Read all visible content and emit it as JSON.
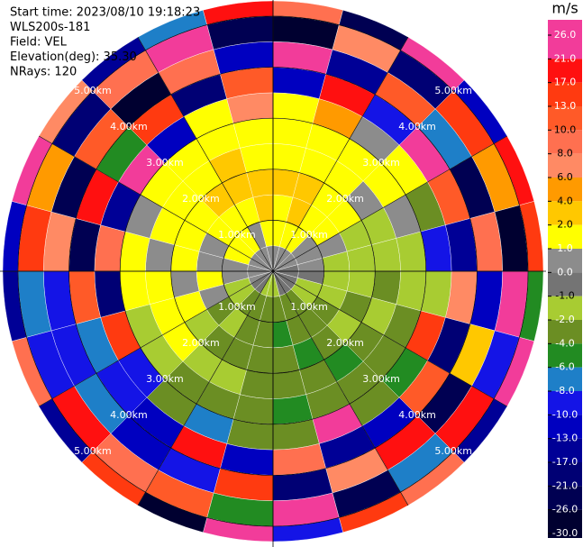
{
  "chart_data": {
    "type": "ppi",
    "info": [
      "Start time: 2023/08/10 19:18:23",
      "WLS200s-181",
      "Field: VEL",
      "Elevation(deg): 35.30",
      "NRays: 120"
    ],
    "rlim": [
      0,
      5.3
    ],
    "range_rings": [
      {
        "value": 1,
        "label": "1.00km"
      },
      {
        "value": 2,
        "label": "2.00km"
      },
      {
        "value": 3,
        "label": "3.00km"
      },
      {
        "value": 4,
        "label": "4.00km"
      },
      {
        "value": 5,
        "label": "5.00km"
      }
    ],
    "azimuths": [
      0,
      15,
      30,
      45,
      60,
      75,
      90,
      105,
      120,
      135,
      150,
      165,
      180,
      195,
      210,
      225,
      240,
      255,
      270,
      285,
      300,
      315,
      330,
      345
    ],
    "range_edges": [
      0,
      0.5,
      1,
      1.5,
      2,
      2.5,
      3,
      3.5,
      4,
      4.5,
      5,
      5.3
    ],
    "values": [
      [
        0.5,
        1.5,
        1.5,
        3,
        1.5,
        1.5,
        1.5,
        -12,
        22,
        -27,
        9
      ],
      [
        0.5,
        1.5,
        3,
        3,
        1.5,
        1.5,
        5,
        18,
        -14,
        7,
        -24
      ],
      [
        0.5,
        1.5,
        1.5,
        1.5,
        1.5,
        1.5,
        0.5,
        -9,
        12,
        -18,
        27
      ],
      [
        0.5,
        0.5,
        1.5,
        1.5,
        0.5,
        1.5,
        1.5,
        24,
        -7,
        15,
        -11
      ],
      [
        0.5,
        0.5,
        0.5,
        -1.5,
        -1.5,
        0.5,
        -3,
        11,
        -22,
        5,
        19
      ],
      [
        -0.5,
        0.5,
        -1.5,
        -1.5,
        -1.5,
        -1.5,
        -9,
        -16,
        9,
        -28,
        14
      ],
      [
        -0.5,
        -0.5,
        -1.5,
        -1.5,
        -3,
        -1.5,
        -1.5,
        7,
        -12,
        23,
        -5
      ],
      [
        -0.5,
        -1.5,
        -1.5,
        -3,
        -1.5,
        -3,
        16,
        -20,
        3,
        -9,
        25
      ],
      [
        -0.5,
        -1.5,
        -3,
        -1.5,
        -3,
        -3,
        -5,
        12,
        -26,
        18,
        -14
      ],
      [
        -0.5,
        -3,
        -3,
        -3,
        -5,
        -3,
        -3,
        -11,
        20,
        -7,
        9
      ],
      [
        -0.5,
        -3,
        -3,
        -5,
        -3,
        -3,
        22,
        -15,
        6,
        -23,
        14
      ],
      [
        -1.5,
        -3,
        -5,
        -3,
        -3,
        -5,
        -3,
        8,
        -18,
        27,
        -9
      ],
      [
        -1.5,
        -3,
        -3,
        -3,
        -3,
        -3,
        -3,
        -12,
        15,
        -5,
        21
      ],
      [
        -1.5,
        -3,
        -3,
        -3,
        -1.5,
        -3,
        -7,
        18,
        -9,
        12,
        -27
      ],
      [
        -0.5,
        -3,
        -1.5,
        -3,
        -1.5,
        -3,
        -3,
        -11,
        -12,
        9,
        16
      ],
      [
        -0.5,
        -1.5,
        -3,
        -1.5,
        1.5,
        -1.5,
        -9,
        -9,
        -7,
        19,
        -15
      ],
      [
        0.5,
        -1.5,
        0.5,
        1.5,
        1.5,
        -1.5,
        14,
        -7,
        -9,
        -9,
        8
      ],
      [
        0.5,
        0.5,
        1.5,
        0.5,
        1.5,
        1.5,
        -20,
        11,
        -9,
        -7,
        -16
      ],
      [
        0.5,
        0.5,
        0.5,
        1.5,
        0.5,
        1.5,
        9,
        -25,
        6,
        14,
        -11
      ],
      [
        0.5,
        1.5,
        0.5,
        1.5,
        1.5,
        0.5,
        -14,
        17,
        -22,
        5,
        26
      ],
      [
        0.5,
        1.5,
        1.5,
        1.5,
        1.5,
        1.5,
        23,
        -6,
        11,
        -19,
        7
      ],
      [
        0.5,
        1.5,
        1.5,
        3,
        1.5,
        1.5,
        -11,
        14,
        -27,
        9,
        -16
      ],
      [
        0.5,
        0.5,
        1.5,
        3,
        3,
        1.5,
        1.5,
        -18,
        8,
        21,
        -8
      ],
      [
        0.5,
        1.5,
        3,
        3,
        1.5,
        1.5,
        6,
        10,
        -13,
        -24,
        17
      ]
    ],
    "colorbar": {
      "label": "m/s",
      "ticks": [
        {
          "value": 26,
          "label": "26.0"
        },
        {
          "value": 21,
          "label": "21.0"
        },
        {
          "value": 17,
          "label": "17.0"
        },
        {
          "value": 13,
          "label": "13.0"
        },
        {
          "value": 10,
          "label": "10.0"
        },
        {
          "value": 8,
          "label": "8.0"
        },
        {
          "value": 6,
          "label": "6.0"
        },
        {
          "value": 4,
          "label": "4.0"
        },
        {
          "value": 2,
          "label": "2.0"
        },
        {
          "value": 1,
          "label": "1.0"
        },
        {
          "value": 0,
          "label": "0.0"
        },
        {
          "value": -1,
          "label": "-1.0"
        },
        {
          "value": -2,
          "label": "-2.0"
        },
        {
          "value": -4,
          "label": "-4.0"
        },
        {
          "value": -6,
          "label": "-6.0"
        },
        {
          "value": -8,
          "label": "-8.0"
        },
        {
          "value": -10,
          "label": "-10.0"
        },
        {
          "value": -13,
          "label": "-13.0"
        },
        {
          "value": -17,
          "label": "-17.0"
        },
        {
          "value": -21,
          "label": "-21.0"
        },
        {
          "value": -26,
          "label": "-26.0"
        },
        {
          "value": -30,
          "label": "-30.0"
        }
      ],
      "colors": [
        "#f23c9a",
        "#ff1010",
        "#ff3a10",
        "#ff5a28",
        "#ff7050",
        "#ff8a64",
        "#ff9a00",
        "#ffc800",
        "#ffff00",
        "#8c8c8c",
        "#747474",
        "#a8cc32",
        "#6b8e23",
        "#228b22",
        "#1e7fc8",
        "#1414e6",
        "#0000c0",
        "#000096",
        "#000074",
        "#000052",
        "#000030"
      ]
    }
  }
}
